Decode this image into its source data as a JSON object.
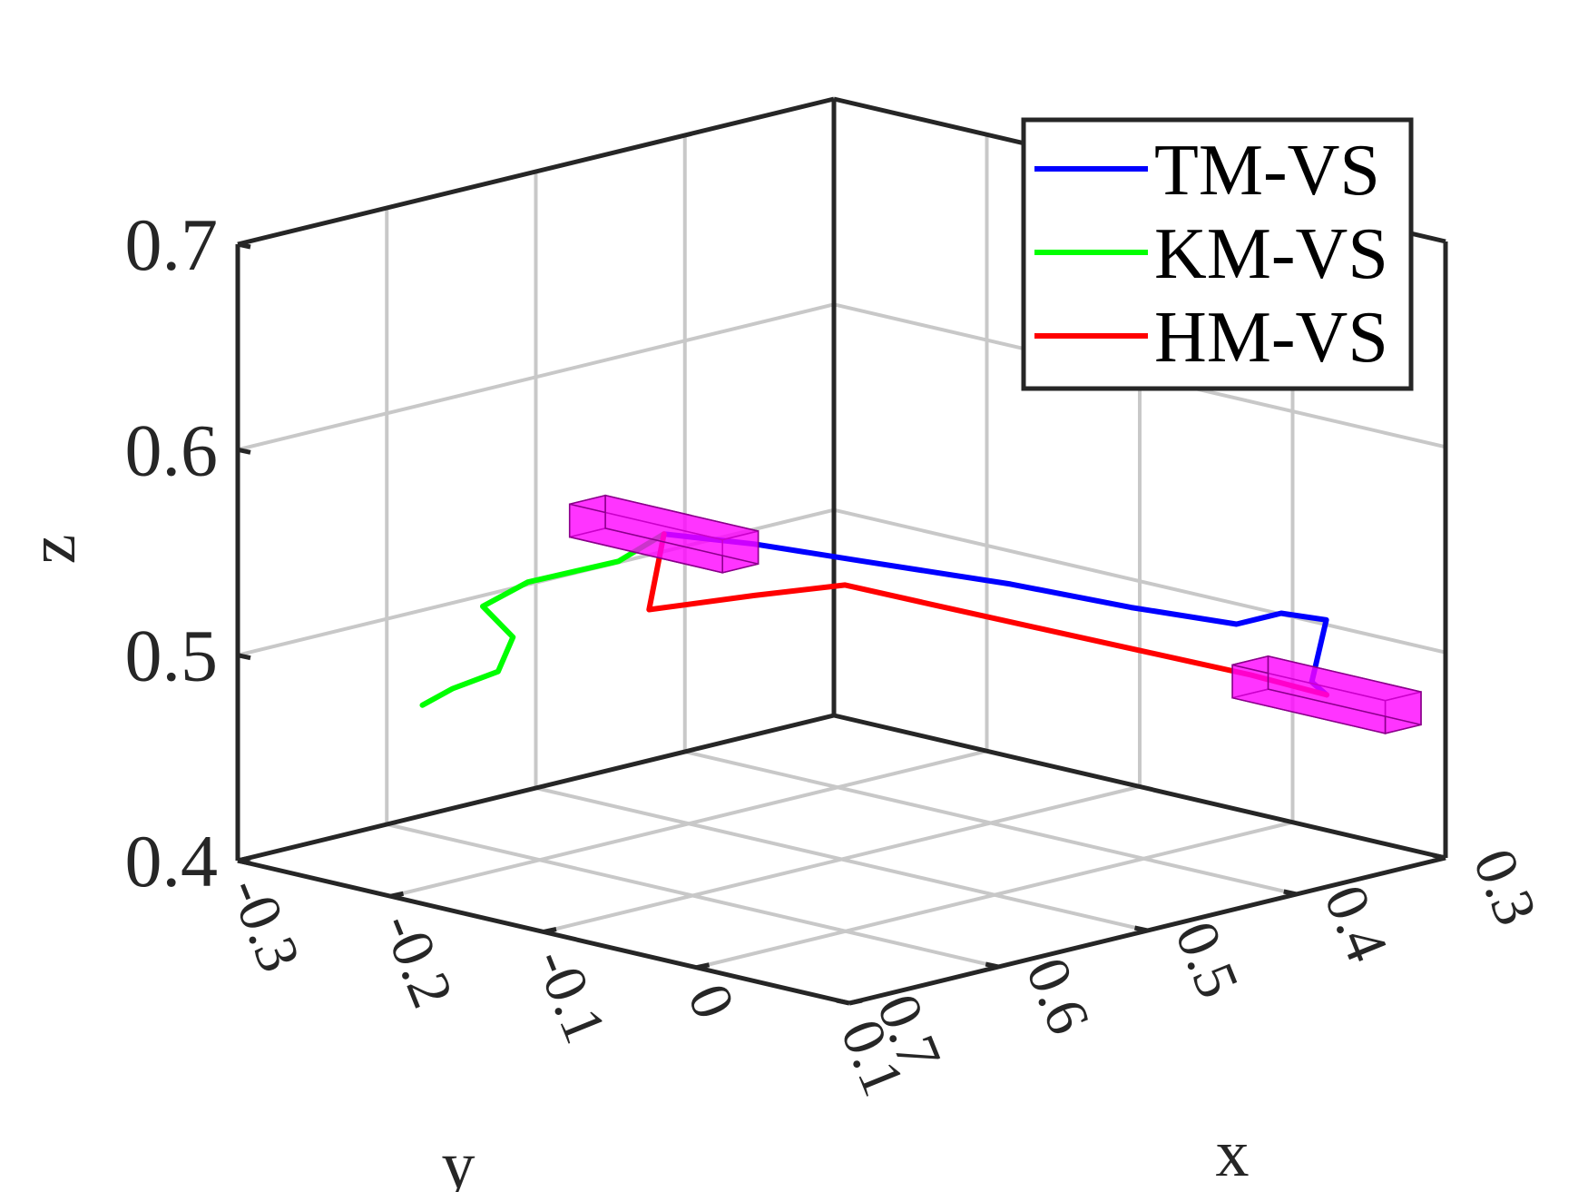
{
  "chart_data": {
    "type": "line3d",
    "title": "",
    "xlabel": "x",
    "ylabel": "y",
    "zlabel": "z",
    "xlim": [
      0.3,
      0.7
    ],
    "ylim": [
      -0.3,
      0.1
    ],
    "zlim": [
      0.4,
      0.7
    ],
    "xticks": [
      "0.3",
      "0.4",
      "0.5",
      "0.6",
      "0.7"
    ],
    "yticks": [
      "-0.3",
      "-0.2",
      "-0.1",
      "0",
      "0.1"
    ],
    "zticks": [
      "0.4",
      "0.5",
      "0.6",
      "0.7"
    ],
    "grid": true,
    "legend_position": "top-right",
    "series": [
      {
        "name": "TM-VS",
        "color": "#0000ff",
        "points": [
          [
            0.65,
            -0.07,
            0.59
          ],
          [
            0.62,
            -0.04,
            0.585
          ],
          [
            0.58,
            -0.01,
            0.575
          ],
          [
            0.52,
            0.03,
            0.56
          ],
          [
            0.47,
            0.06,
            0.545
          ],
          [
            0.43,
            0.09,
            0.535
          ],
          [
            0.4,
            0.09,
            0.535
          ],
          [
            0.38,
            0.1,
            0.53
          ],
          [
            0.4,
            0.11,
            0.505
          ],
          [
            0.39,
            0.11,
            0.497
          ]
        ]
      },
      {
        "name": "KM-VS",
        "color": "#00ff00",
        "points": [
          [
            0.65,
            -0.07,
            0.59
          ],
          [
            0.66,
            -0.09,
            0.575
          ],
          [
            0.69,
            -0.12,
            0.565
          ],
          [
            0.71,
            -0.13,
            0.555
          ],
          [
            0.7,
            -0.12,
            0.54
          ],
          [
            0.71,
            -0.12,
            0.525
          ],
          [
            0.72,
            -0.14,
            0.515
          ],
          [
            0.73,
            -0.15,
            0.507
          ]
        ]
      },
      {
        "name": "HM-VS",
        "color": "#ff0000",
        "points": [
          [
            0.65,
            -0.07,
            0.59
          ],
          [
            0.66,
            -0.07,
            0.555
          ],
          [
            0.62,
            -0.04,
            0.56
          ],
          [
            0.59,
            -0.01,
            0.565
          ],
          [
            0.56,
            0.02,
            0.555
          ],
          [
            0.5,
            0.05,
            0.535
          ],
          [
            0.44,
            0.07,
            0.515
          ],
          [
            0.41,
            0.08,
            0.505
          ],
          [
            0.39,
            0.11,
            0.497
          ]
        ]
      }
    ],
    "markers": [
      {
        "name": "start-box",
        "color": "#ff00ff",
        "center": [
          0.65,
          -0.07,
          0.59
        ]
      },
      {
        "name": "goal-box",
        "color": "#ff00ff",
        "center": [
          0.39,
          0.11,
          0.497
        ]
      }
    ]
  }
}
